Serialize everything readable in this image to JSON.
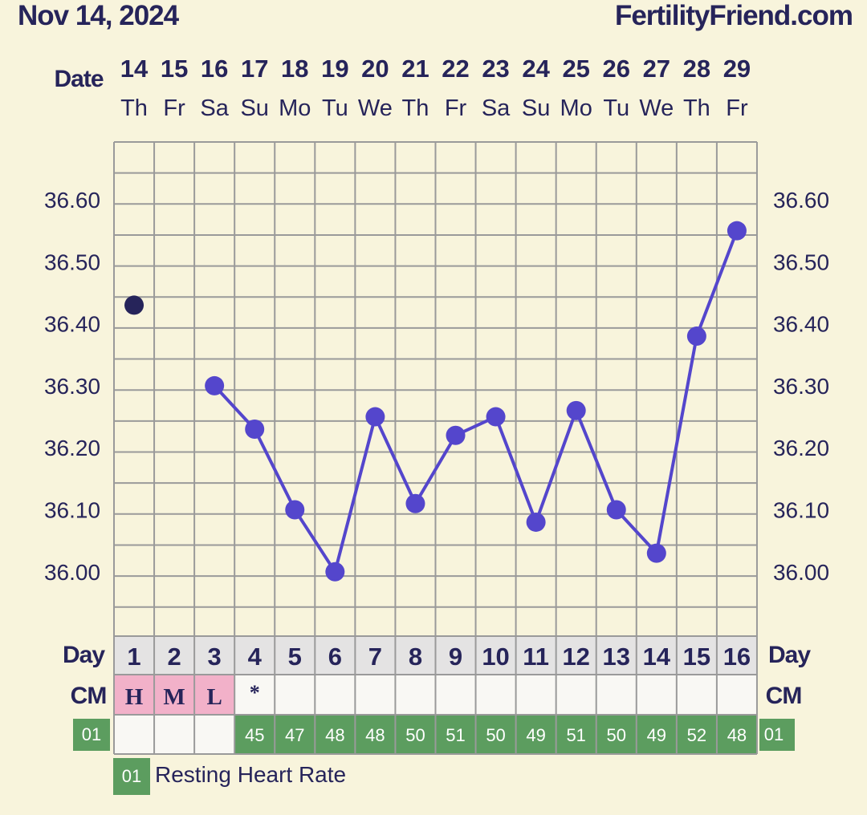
{
  "header": {
    "date": "Nov 14, 2024",
    "site": "FertilityFriend.com"
  },
  "labels": {
    "date": "Date",
    "day": "Day",
    "cm": "CM"
  },
  "colors": {
    "background": "#f8f4dc",
    "text": "#26245a",
    "line": "#5446cc",
    "first_point": "#26245a",
    "cm_fill": "#f2b1c9",
    "rhr_fill": "#5c9d5f",
    "grid": "#9a9a9a",
    "day_row": "#e4e3e3",
    "cm_row": "#f9f8f4"
  },
  "chart_data": {
    "type": "line",
    "title": "",
    "xlabel": "",
    "ylabel": "",
    "ylim": [
      35.92,
      36.7
    ],
    "y_ticks": [
      "36.60",
      "36.50",
      "36.40",
      "36.30",
      "36.20",
      "36.10",
      "36.00"
    ],
    "dates": [
      "14",
      "15",
      "16",
      "17",
      "18",
      "19",
      "20",
      "21",
      "22",
      "23",
      "24",
      "25",
      "26",
      "27",
      "28",
      "29"
    ],
    "weekdays": [
      "Th",
      "Fr",
      "Sa",
      "Su",
      "Mo",
      "Tu",
      "We",
      "Th",
      "Fr",
      "Sa",
      "Su",
      "Mo",
      "Tu",
      "We",
      "Th",
      "Fr"
    ],
    "cycle_days": [
      "1",
      "2",
      "3",
      "4",
      "5",
      "6",
      "7",
      "8",
      "9",
      "10",
      "11",
      "12",
      "13",
      "14",
      "15",
      "16"
    ],
    "series": [
      {
        "values": [
          36.43,
          null,
          36.3,
          36.23,
          36.1,
          36.0,
          36.25,
          36.11,
          36.22,
          36.25,
          36.08,
          36.26,
          36.1,
          36.03,
          36.38,
          36.55
        ]
      }
    ],
    "cervical_mucus": [
      "H",
      "M",
      "L",
      "*",
      "",
      "",
      "",
      "",
      "",
      "",
      "",
      "",
      "",
      "",
      "",
      ""
    ],
    "resting_heart_rate": [
      "",
      "",
      "",
      "45",
      "47",
      "48",
      "48",
      "50",
      "51",
      "50",
      "49",
      "51",
      "50",
      "49",
      "52",
      "48"
    ],
    "rhr_tag": "01",
    "legend": [
      {
        "tag": "01",
        "label": "Resting Heart Rate"
      }
    ],
    "grid": true
  }
}
